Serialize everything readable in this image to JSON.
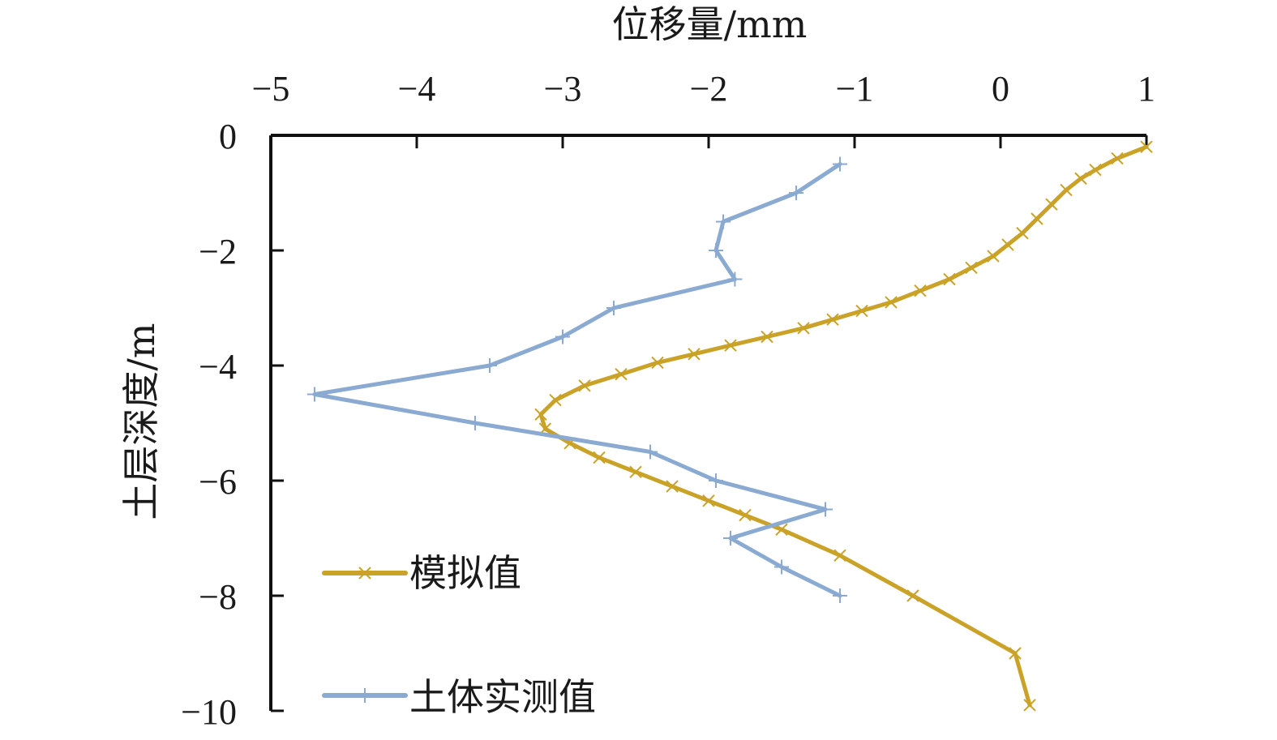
{
  "chart_data": {
    "type": "line",
    "title": "",
    "xlabel": "位移量/mm",
    "ylabel": "土层深度/m",
    "xlim": [
      -5,
      1
    ],
    "ylim": [
      -10,
      0
    ],
    "x_axis_position": "top",
    "x_ticks": [
      -5,
      -4,
      -3,
      -2,
      -1,
      0,
      1
    ],
    "y_ticks": [
      0,
      -2,
      -4,
      -6,
      -8,
      -10
    ],
    "x_tick_labels": [
      "−5",
      "−4",
      "−3",
      "−2",
      "−1",
      "0",
      "1"
    ],
    "y_tick_labels": [
      "0",
      "−2",
      "−4",
      "−6",
      "−8",
      "−10"
    ],
    "grid": false,
    "legend_position": "bottom-left",
    "series": [
      {
        "name": "模拟值",
        "color": "#c9a227",
        "marker": "x",
        "points": [
          [
            1.0,
            -0.2
          ],
          [
            0.8,
            -0.4
          ],
          [
            0.65,
            -0.6
          ],
          [
            0.55,
            -0.75
          ],
          [
            0.45,
            -0.95
          ],
          [
            0.35,
            -1.2
          ],
          [
            0.25,
            -1.45
          ],
          [
            0.15,
            -1.7
          ],
          [
            0.05,
            -1.9
          ],
          [
            -0.05,
            -2.1
          ],
          [
            -0.2,
            -2.3
          ],
          [
            -0.35,
            -2.5
          ],
          [
            -0.55,
            -2.7
          ],
          [
            -0.75,
            -2.9
          ],
          [
            -0.95,
            -3.05
          ],
          [
            -1.15,
            -3.2
          ],
          [
            -1.35,
            -3.35
          ],
          [
            -1.6,
            -3.5
          ],
          [
            -1.85,
            -3.65
          ],
          [
            -2.1,
            -3.8
          ],
          [
            -2.35,
            -3.95
          ],
          [
            -2.6,
            -4.15
          ],
          [
            -2.85,
            -4.35
          ],
          [
            -3.05,
            -4.6
          ],
          [
            -3.15,
            -4.85
          ],
          [
            -3.12,
            -5.1
          ],
          [
            -2.95,
            -5.35
          ],
          [
            -2.75,
            -5.6
          ],
          [
            -2.5,
            -5.85
          ],
          [
            -2.25,
            -6.1
          ],
          [
            -2.0,
            -6.35
          ],
          [
            -1.75,
            -6.6
          ],
          [
            -1.5,
            -6.85
          ],
          [
            -1.1,
            -7.3
          ],
          [
            -0.6,
            -8.0
          ],
          [
            0.1,
            -9.0
          ],
          [
            0.2,
            -9.9
          ]
        ]
      },
      {
        "name": "土体实测值",
        "color": "#8aaad2",
        "marker": "+",
        "points": [
          [
            -1.1,
            -0.5
          ],
          [
            -1.4,
            -1.0
          ],
          [
            -1.9,
            -1.5
          ],
          [
            -1.95,
            -2.0
          ],
          [
            -1.82,
            -2.5
          ],
          [
            -2.65,
            -3.0
          ],
          [
            -3.0,
            -3.5
          ],
          [
            -3.5,
            -4.0
          ],
          [
            -4.7,
            -4.5
          ],
          [
            -3.6,
            -5.0
          ],
          [
            -2.4,
            -5.5
          ],
          [
            -1.95,
            -6.0
          ],
          [
            -1.2,
            -6.5
          ],
          [
            -1.85,
            -7.0
          ],
          [
            -1.5,
            -7.5
          ],
          [
            -1.1,
            -8.0
          ]
        ]
      }
    ]
  }
}
